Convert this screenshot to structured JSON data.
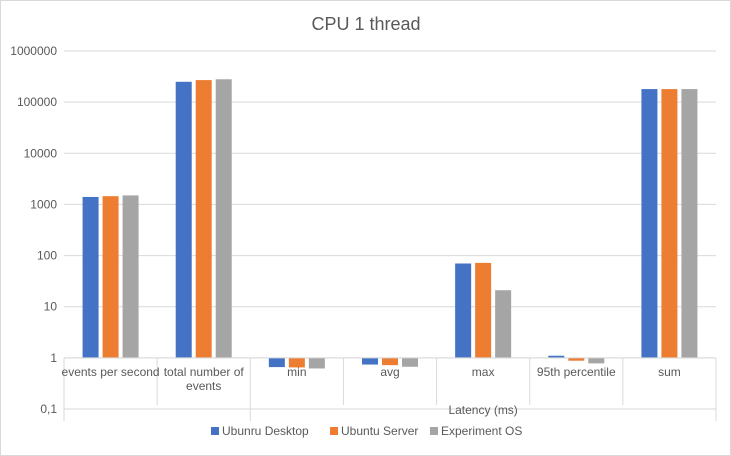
{
  "chart_data": {
    "type": "bar",
    "title": "CPU 1 thread",
    "categories": [
      "events per second",
      "total number of events",
      "min",
      "avg",
      "max",
      "95th percentile",
      "sum"
    ],
    "category_lines": [
      [
        "events per second"
      ],
      [
        "total number of",
        "events"
      ],
      [
        "min"
      ],
      [
        "avg"
      ],
      [
        "max"
      ],
      [
        "95th percentile"
      ],
      [
        "sum"
      ]
    ],
    "group_label": "Latency (ms)",
    "group_start_index": 2,
    "y_scale": "log",
    "ylim": [
      0.1,
      1000000
    ],
    "y_ticks": [
      0.1,
      1,
      10,
      100,
      1000,
      10000,
      100000,
      1000000
    ],
    "y_tick_labels": [
      "0,1",
      "1",
      "10",
      "100",
      "1000",
      "10000",
      "100000",
      "1000000"
    ],
    "grid": true,
    "legend_position": "bottom",
    "series": [
      {
        "name": "Ubunru Desktop",
        "color": "#4472c4",
        "values": [
          1400,
          250000,
          0.66,
          0.74,
          70,
          1.1,
          180000
        ]
      },
      {
        "name": "Ubuntu Server",
        "color": "#ed7d31",
        "values": [
          1450,
          270000,
          0.65,
          0.72,
          72,
          0.88,
          180000
        ]
      },
      {
        "name": "Experiment OS",
        "color": "#a5a5a5",
        "values": [
          1500,
          280000,
          0.62,
          0.67,
          21,
          0.78,
          180000
        ]
      }
    ]
  }
}
